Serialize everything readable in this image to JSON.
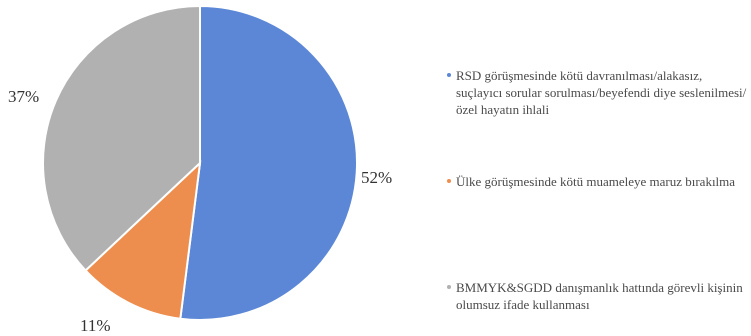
{
  "chart_data": {
    "type": "pie",
    "slices": [
      {
        "label": "RSD görüşmesinde kötü davranılması/alakasız, suçlayıcı sorular sorulması/beyefendi diye seslenilmesi/özel hayatın ihlali",
        "value": 52,
        "display": "52%",
        "color": "#5b87d6"
      },
      {
        "label": "Ülke görüşmesinde kötü muameleye maruz bırakılma",
        "value": 11,
        "display": "11%",
        "color": "#ed8d4e"
      },
      {
        "label": "BMMYK&SGDD danışmanlık hattında görevli kişinin olumsuz ifade kullanması",
        "value": 37,
        "display": "37%",
        "color": "#b1b1b1"
      }
    ],
    "legend_position": "right"
  }
}
